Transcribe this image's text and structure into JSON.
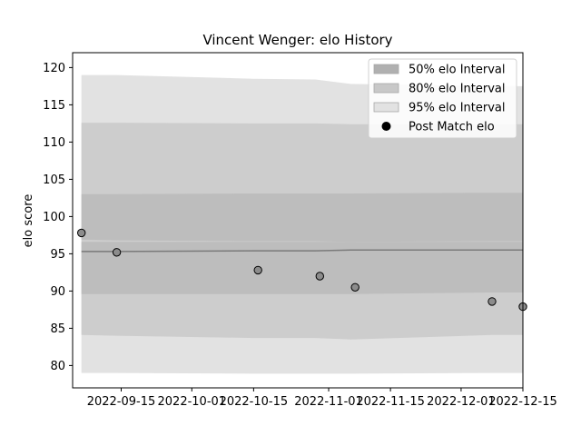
{
  "chart_data": {
    "type": "area",
    "title": "Vincent Wenger: elo History",
    "xlabel": "",
    "ylabel": "elo score",
    "xlim": [
      "2022-09-04",
      "2022-12-15"
    ],
    "ylim": [
      77,
      122
    ],
    "x_ticks": [
      "2022-09-15",
      "2022-10-01",
      "2022-10-15",
      "2022-11-01",
      "2022-11-15",
      "2022-12-01",
      "2022-12-15"
    ],
    "y_ticks": [
      80,
      85,
      90,
      95,
      100,
      105,
      110,
      115,
      120
    ],
    "grid": false,
    "legend_position": "top-right",
    "legend": [
      {
        "label": "50% elo Interval",
        "kind": "band",
        "color": "#b0b0b0"
      },
      {
        "label": "80% elo Interval",
        "kind": "band",
        "color": "#c8c8c8"
      },
      {
        "label": "95% elo Interval",
        "kind": "band",
        "color": "#e2e2e2"
      },
      {
        "label": "Post Match elo",
        "kind": "marker",
        "color": "#000000"
      }
    ],
    "band_x": [
      "2022-09-06",
      "2022-09-14",
      "2022-10-15",
      "2022-10-29",
      "2022-11-06",
      "2022-12-08",
      "2022-12-15"
    ],
    "bands": [
      {
        "name": "95% elo Interval",
        "color": "#e2e2e2",
        "upper": [
          119.0,
          119.0,
          118.5,
          118.4,
          117.8,
          117.5,
          117.5
        ],
        "lower": [
          79.0,
          79.0,
          78.9,
          78.9,
          78.9,
          79.0,
          79.0
        ]
      },
      {
        "name": "80% elo Interval",
        "color": "#cdcdcd",
        "upper": [
          112.6,
          112.6,
          112.5,
          112.5,
          112.4,
          112.4,
          112.4
        ],
        "lower": [
          84.1,
          84.0,
          83.7,
          83.7,
          83.5,
          84.1,
          84.1
        ]
      },
      {
        "name": "50% elo Interval",
        "color": "#bdbdbd",
        "upper": [
          103.0,
          103.0,
          103.1,
          103.1,
          103.1,
          103.2,
          103.2
        ],
        "lower": [
          96.9,
          96.8,
          96.7,
          96.7,
          96.6,
          96.7,
          96.7
        ]
      },
      {
        "name": "50% elo Interval",
        "color": "#bdbdbd",
        "upper": [
          96.6,
          96.6,
          96.6,
          96.6,
          96.6,
          96.6,
          96.6
        ],
        "lower": [
          89.6,
          89.6,
          89.6,
          89.6,
          89.6,
          89.8,
          89.8
        ]
      }
    ],
    "mean_line": {
      "color": "#7a7a7a",
      "values": [
        95.3,
        95.3,
        95.4,
        95.4,
        95.5,
        95.5,
        95.5
      ]
    },
    "points": {
      "name": "Post Match elo",
      "x": [
        "2022-09-06",
        "2022-09-14",
        "2022-10-16",
        "2022-10-30",
        "2022-11-07",
        "2022-12-08",
        "2022-12-15"
      ],
      "y": [
        97.8,
        95.2,
        92.8,
        92.0,
        90.5,
        88.6,
        87.9
      ]
    }
  }
}
